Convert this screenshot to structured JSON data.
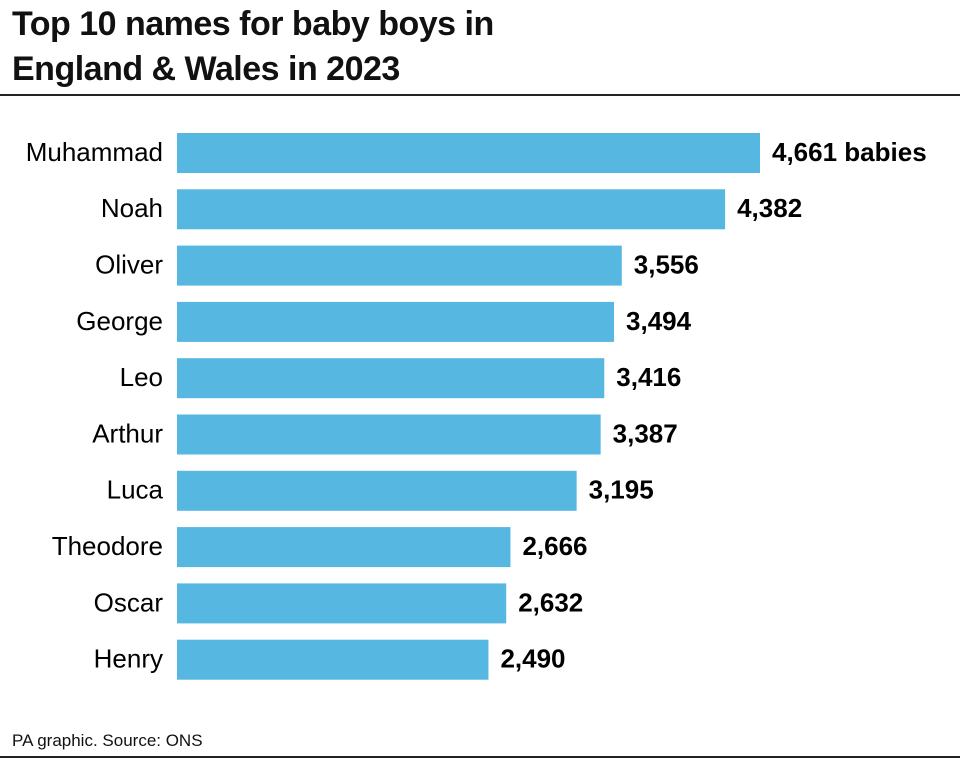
{
  "chart_data": {
    "type": "bar",
    "orientation": "horizontal",
    "title": "Top 10 names for baby boys in England & Wales in 2023",
    "categories": [
      "Muhammad",
      "Noah",
      "Oliver",
      "George",
      "Leo",
      "Arthur",
      "Luca",
      "Theodore",
      "Oscar",
      "Henry"
    ],
    "values": [
      4661,
      4382,
      3556,
      3494,
      3416,
      3387,
      3195,
      2666,
      2632,
      2490
    ],
    "value_labels": [
      "4,661 babies",
      "4,382",
      "3,556",
      "3,494",
      "3,416",
      "3,387",
      "3,195",
      "2,666",
      "2,632",
      "2,490"
    ],
    "color": "#56b7e0",
    "source": "PA graphic. Source: ONS"
  }
}
